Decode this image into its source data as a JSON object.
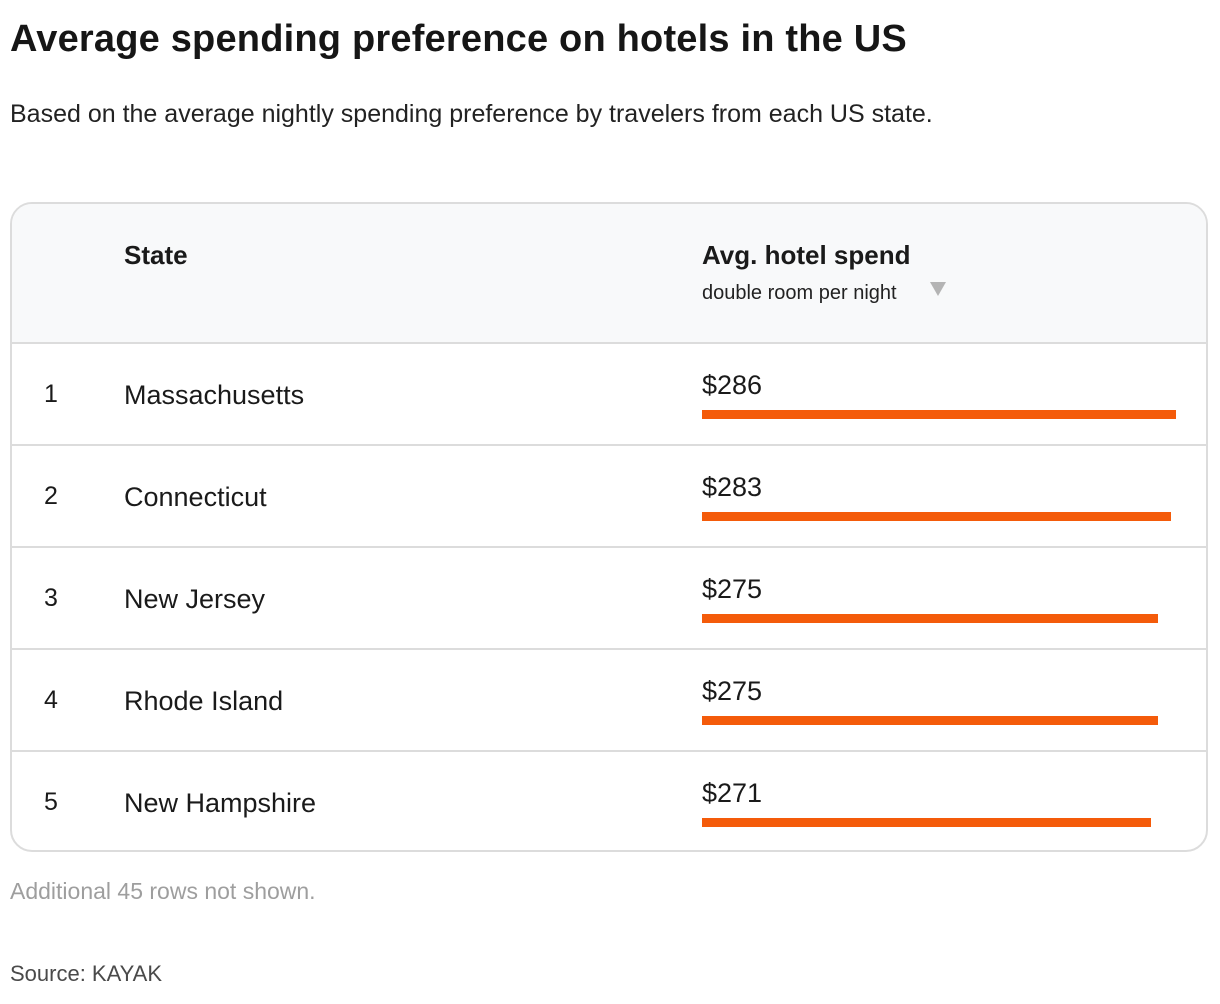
{
  "title": "Average spending preference on hotels in the US",
  "subtitle": "Based on the average nightly spending preference by travelers from each US state.",
  "table": {
    "columns": {
      "state": "State",
      "spend": "Avg. hotel spend",
      "spend_sub": "double room per night"
    },
    "sort_icon": "sort-descending-triangle-icon"
  },
  "chart_data": {
    "type": "bar",
    "categories": [
      "Massachusetts",
      "Connecticut",
      "New Jersey",
      "Rhode Island",
      "New Hampshire"
    ],
    "ranks": [
      "1",
      "2",
      "3",
      "4",
      "5"
    ],
    "values": [
      286,
      283,
      275,
      275,
      271
    ],
    "value_labels": [
      "$286",
      "$283",
      "$275",
      "$275",
      "$271"
    ],
    "bar_color": "#f45b0a"
  },
  "note": "Additional 45 rows not shown.",
  "source": "Source: KAYAK"
}
